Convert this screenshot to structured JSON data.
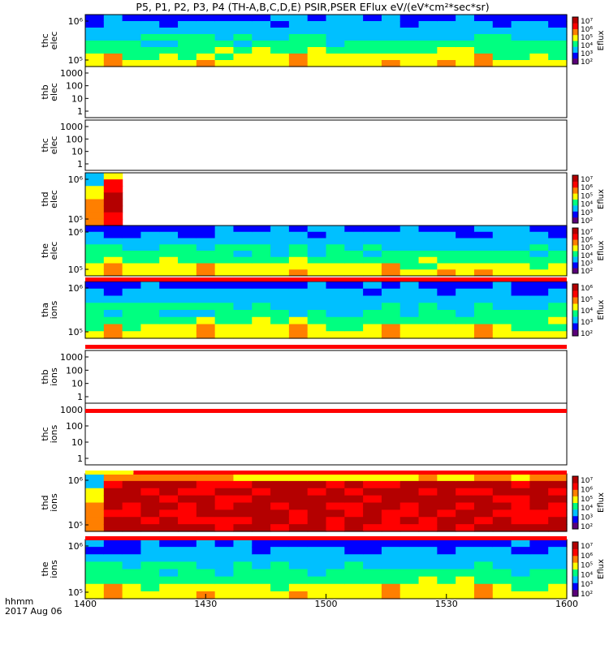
{
  "chart_data": {
    "type": "heatmap",
    "title": "P5, P1, P2, P3, P4 (TH-A,B,C,D,E) PSIR,PSER EFlux eV/(eV*cm²*sec*sr)",
    "date_label": "2017 Aug 06",
    "xlabel": "hhmm",
    "x_ticks": [
      "1400",
      "1430",
      "1500",
      "1530",
      "1600"
    ],
    "x_range": [
      "1400",
      "1600"
    ],
    "colorbar_label": "Eflux",
    "colorscale": [
      "#5a007a",
      "#0000ff",
      "#00c0ff",
      "#00ff80",
      "#ffff00",
      "#ff7f00",
      "#ff0000",
      "#b40000"
    ],
    "panels": [
      {
        "label": [
          "thc",
          "elec"
        ],
        "y_ticks": [
          "10⁵",
          "10⁶"
        ],
        "has_data": true,
        "time_bins": [
          0,
          9,
          15,
          18,
          27,
          30,
          36,
          39,
          45,
          54,
          60,
          63,
          69,
          78,
          84,
          90,
          96,
          100
        ],
        "colorbar": {
          "ticks": [
            "10²",
            "10³",
            "10⁴",
            "10⁵",
            "10⁶",
            "10⁷"
          ]
        }
      },
      {
        "label": [
          "thb",
          "elec"
        ],
        "y_ticks": [
          "1",
          "10",
          "100",
          "1000"
        ],
        "has_data": false
      },
      {
        "label": [
          "thc",
          "elec"
        ],
        "y_ticks": [
          "1",
          "10",
          "100",
          "1000"
        ],
        "has_data": false
      },
      {
        "label": [
          "thd",
          "elec"
        ],
        "y_ticks": [
          "10⁵",
          "10⁶"
        ],
        "has_data": true,
        "time_bins": [
          0,
          7.5,
          15
        ],
        "colorbar": {
          "ticks": [
            "10²",
            "10³",
            "10⁴",
            "10⁵",
            "10⁶",
            "10⁷"
          ]
        }
      },
      {
        "label": [
          "the",
          "elec"
        ],
        "y_ticks": [
          "10⁵",
          "10⁶"
        ],
        "has_data": true,
        "colorbar": {
          "ticks": [
            "10²",
            "10³",
            "10⁴",
            "10⁵",
            "10⁶",
            "10⁷"
          ]
        }
      },
      {
        "label": [
          "tha",
          "ions"
        ],
        "y_ticks": [
          "10⁵",
          "10⁶"
        ],
        "has_data": true,
        "colorbar": {
          "ticks": [
            "10²",
            "10³",
            "10⁴",
            "10⁵",
            "10⁶"
          ]
        }
      },
      {
        "label": [
          "thb",
          "ions"
        ],
        "y_ticks": [
          "1",
          "10",
          "100",
          "1000"
        ],
        "has_data": false
      },
      {
        "label": [
          "thc",
          "ions"
        ],
        "y_ticks": [
          "1",
          "10",
          "100",
          "1000"
        ],
        "has_data": false
      },
      {
        "label": [
          "thd",
          "ions"
        ],
        "y_ticks": [
          "10⁵",
          "10⁶"
        ],
        "has_data": true,
        "colorbar": {
          "ticks": [
            "10²",
            "10³",
            "10⁴",
            "10⁵",
            "10⁶",
            "10⁷"
          ]
        }
      },
      {
        "label": [
          "the",
          "ions"
        ],
        "y_ticks": [
          "10⁵",
          "10⁶"
        ],
        "has_data": true,
        "colorbar": {
          "ticks": [
            "10²",
            "10³",
            "10⁴",
            "10⁵",
            "10⁶",
            "10⁷"
          ]
        }
      }
    ]
  }
}
